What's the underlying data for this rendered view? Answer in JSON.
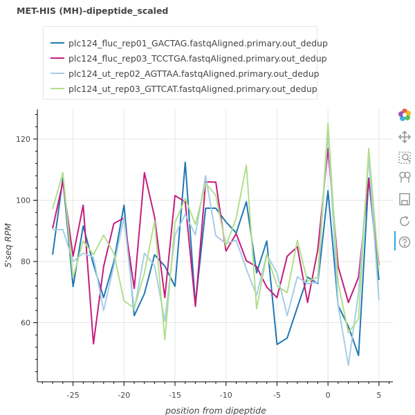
{
  "chart_data": {
    "type": "line",
    "title": "MET-HIS (MH)-dipeptide_scaled",
    "xlabel": "position from dipeptide",
    "ylabel": "5'seq RPM",
    "xlim": [
      -28.5,
      6.5
    ],
    "ylim": [
      40.7,
      129.7
    ],
    "x_ticks": [
      -25,
      -20,
      -15,
      -10,
      -5,
      0,
      5
    ],
    "y_ticks": [
      60,
      80,
      100,
      120
    ],
    "grid": true,
    "legend_position": "top-left",
    "x": [
      -27,
      -26,
      -25,
      -24,
      -23,
      -22,
      -21,
      -20,
      -19,
      -18,
      -17,
      -16,
      -15,
      -14,
      -13,
      -12,
      -11,
      -10,
      -9,
      -8,
      -7,
      -6,
      -5,
      -4,
      -3,
      -2,
      -1,
      0,
      1,
      2,
      3,
      4,
      5
    ],
    "series": [
      {
        "name": "plc124_fluc_rep01_GACTAG.fastqAligned.primary.out_dedup",
        "color": "#1f77b4",
        "values": [
          82.2,
          107.3,
          71.8,
          91.6,
          79.0,
          68.2,
          79.9,
          98.4,
          62.3,
          69.5,
          82.2,
          78.5,
          71.9,
          112.4,
          65.9,
          97.4,
          97.4,
          92.9,
          89.3,
          99.5,
          76.3,
          86.7,
          52.9,
          55.0,
          65.0,
          74.9,
          72.8,
          103.1,
          65.6,
          58.8,
          49.3,
          107.3,
          73.9
        ]
      },
      {
        "name": "plc124_fluc_rep03_TCCTGA.fastqAligned.primary.out_dedup",
        "color": "#c51b7d",
        "values": [
          90.8,
          106.0,
          81.7,
          98.4,
          53.1,
          78.3,
          92.4,
          94.2,
          71.2,
          109.0,
          94.5,
          68.2,
          101.5,
          99.5,
          65.3,
          106.0,
          105.9,
          83.4,
          89.1,
          80.2,
          78.3,
          71.6,
          68.2,
          81.7,
          84.8,
          66.6,
          83.8,
          116.9,
          78.3,
          66.6,
          74.9,
          107.0,
          78.8
        ]
      },
      {
        "name": "plc124_ut_rep02_AGTTAA.fastqAligned.primary.out_dedup",
        "color": "#a6cee3",
        "values": [
          90.4,
          90.4,
          80.0,
          82.7,
          81.4,
          64.0,
          78.7,
          94.4,
          64.1,
          82.7,
          78.7,
          60.5,
          88.6,
          95.4,
          88.7,
          108.0,
          88.4,
          85.9,
          86.9,
          77.5,
          69.0,
          82.3,
          76.2,
          62.3,
          75.0,
          72.7,
          73.2,
          122.7,
          65.6,
          46.1,
          69.9,
          113.9,
          67.3
        ]
      },
      {
        "name": "plc124_ut_rep03_GTTCAT.fastqAligned.primary.out_dedup",
        "color": "#b2df8a",
        "values": [
          97.2,
          109.0,
          74.8,
          86.7,
          82.2,
          88.6,
          82.7,
          67.1,
          64.8,
          76.2,
          93.2,
          54.5,
          92.7,
          100.6,
          92.1,
          105.5,
          101.6,
          85.1,
          94.2,
          111.4,
          64.6,
          82.3,
          72.1,
          69.8,
          86.9,
          73.5,
          74.9,
          125.2,
          73.0,
          56.7,
          61.3,
          116.9,
          77.0
        ]
      }
    ]
  },
  "toolbar": {
    "tools": [
      "bokeh-logo-icon",
      "pan-icon",
      "box-zoom-icon",
      "wheel-zoom-icon",
      "save-icon",
      "reset-icon",
      "help-icon"
    ]
  }
}
